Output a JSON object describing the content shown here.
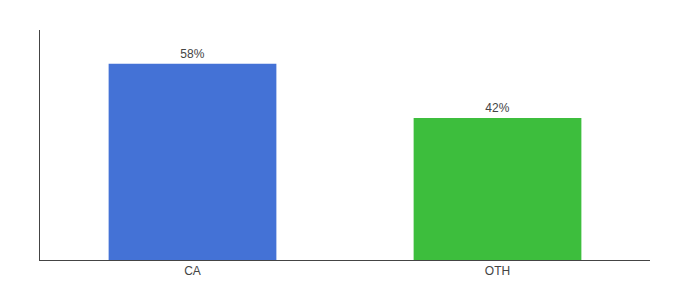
{
  "chart_data": {
    "type": "bar",
    "categories": [
      "CA",
      "OTH"
    ],
    "values": [
      58,
      42
    ],
    "value_labels": [
      "58%",
      "42%"
    ],
    "colors": [
      "#4472d6",
      "#3dbe3d"
    ],
    "ylim": [
      0,
      68
    ],
    "grid": false,
    "data_labels": true,
    "tick_labels": "x"
  }
}
